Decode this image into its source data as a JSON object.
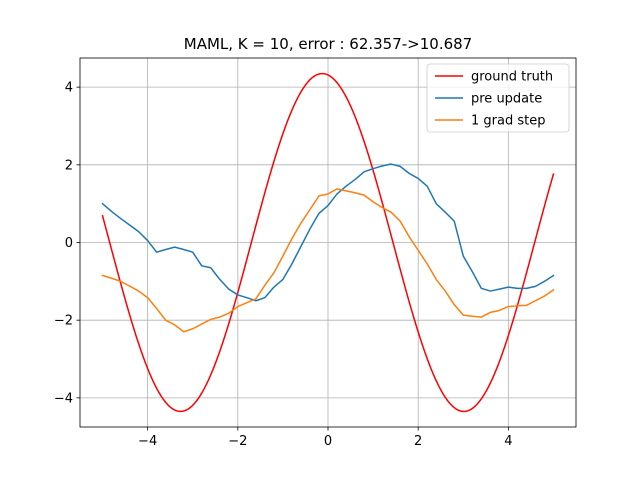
{
  "chart_data": {
    "type": "line",
    "title": "MAML, K = 10, error : 62.357->10.687",
    "xlabel": "",
    "ylabel": "",
    "xlim": [
      -5.5,
      5.5
    ],
    "ylim": [
      -4.75,
      4.75
    ],
    "xticks": [
      -4,
      -2,
      0,
      2,
      4
    ],
    "yticks": [
      -4,
      -2,
      0,
      2,
      4
    ],
    "xtick_labels": [
      "−4",
      "−2",
      "0",
      "2",
      "4"
    ],
    "ytick_labels": [
      "−4",
      "−2",
      "0",
      "2",
      "4"
    ],
    "grid": true,
    "legend_position": "top-right",
    "series": [
      {
        "name": "ground truth",
        "color": "#ff0000",
        "function": {
          "amplitude": 4.35,
          "frequency": 1.0,
          "phase": 1.7,
          "form": "amplitude*sin(frequency*x + phase)"
        },
        "x_range": [
          -5.0,
          5.0
        ]
      },
      {
        "name": "pre update",
        "color": "#1f77b4",
        "x": [
          -5.0,
          -4.8,
          -4.6,
          -4.4,
          -4.2,
          -4.0,
          -3.8,
          -3.6,
          -3.4,
          -3.2,
          -3.0,
          -2.8,
          -2.6,
          -2.4,
          -2.2,
          -2.0,
          -1.8,
          -1.6,
          -1.4,
          -1.2,
          -1.0,
          -0.8,
          -0.6,
          -0.4,
          -0.2,
          0.0,
          0.2,
          0.4,
          0.6,
          0.8,
          1.0,
          1.2,
          1.4,
          1.6,
          1.8,
          2.0,
          2.2,
          2.4,
          2.6,
          2.8,
          3.0,
          3.2,
          3.4,
          3.6,
          3.8,
          4.0,
          4.2,
          4.4,
          4.6,
          4.8,
          5.0
        ],
        "y": [
          1.0,
          0.8,
          0.62,
          0.45,
          0.28,
          0.05,
          -0.25,
          -0.18,
          -0.12,
          -0.18,
          -0.25,
          -0.6,
          -0.65,
          -0.95,
          -1.2,
          -1.35,
          -1.42,
          -1.5,
          -1.42,
          -1.15,
          -0.95,
          -0.55,
          -0.1,
          0.35,
          0.75,
          0.95,
          1.25,
          1.45,
          1.62,
          1.82,
          1.9,
          1.97,
          2.02,
          1.96,
          1.78,
          1.65,
          1.45,
          1.0,
          0.78,
          0.55,
          -0.35,
          -0.75,
          -1.18,
          -1.25,
          -1.2,
          -1.15,
          -1.18,
          -1.18,
          -1.13,
          -1.0,
          -0.85
        ]
      },
      {
        "name": "1 grad step",
        "color": "#ff7f0e",
        "x": [
          -5.0,
          -4.8,
          -4.6,
          -4.4,
          -4.2,
          -4.0,
          -3.8,
          -3.6,
          -3.4,
          -3.2,
          -3.0,
          -2.8,
          -2.6,
          -2.4,
          -2.2,
          -2.0,
          -1.8,
          -1.6,
          -1.4,
          -1.2,
          -1.0,
          -0.8,
          -0.6,
          -0.4,
          -0.2,
          0.0,
          0.2,
          0.4,
          0.6,
          0.8,
          1.0,
          1.2,
          1.4,
          1.6,
          1.8,
          2.0,
          2.2,
          2.4,
          2.6,
          2.8,
          3.0,
          3.2,
          3.4,
          3.6,
          3.8,
          4.0,
          4.2,
          4.4,
          4.6,
          4.8,
          5.0
        ],
        "y": [
          -0.85,
          -0.92,
          -1.0,
          -1.12,
          -1.25,
          -1.42,
          -1.7,
          -2.0,
          -2.12,
          -2.3,
          -2.22,
          -2.1,
          -1.98,
          -1.92,
          -1.82,
          -1.65,
          -1.55,
          -1.45,
          -1.1,
          -0.78,
          -0.35,
          0.1,
          0.5,
          0.85,
          1.2,
          1.25,
          1.38,
          1.33,
          1.28,
          1.22,
          1.05,
          0.9,
          0.78,
          0.55,
          0.15,
          -0.2,
          -0.55,
          -0.95,
          -1.25,
          -1.6,
          -1.87,
          -1.9,
          -1.92,
          -1.8,
          -1.75,
          -1.65,
          -1.63,
          -1.62,
          -1.5,
          -1.38,
          -1.22
        ]
      }
    ]
  }
}
